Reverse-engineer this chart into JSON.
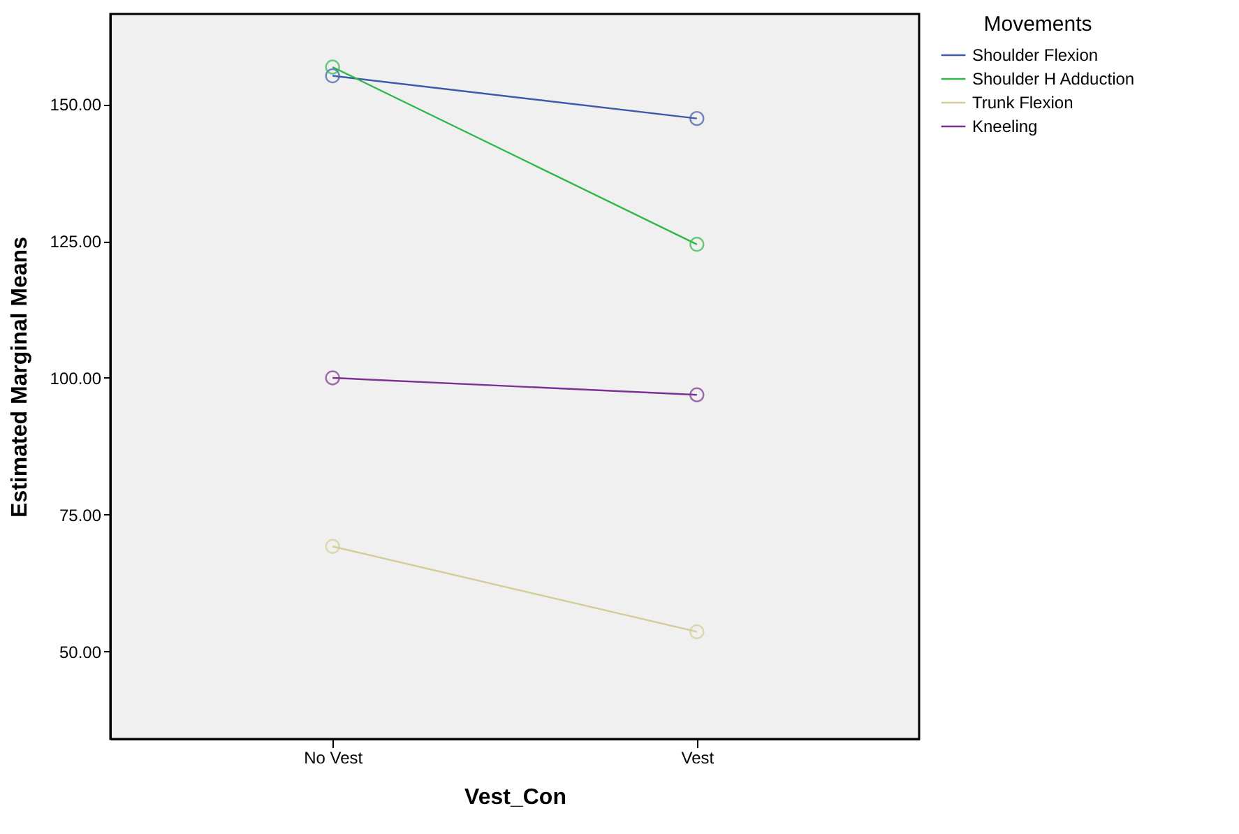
{
  "chart_data": {
    "type": "line",
    "xlabel": "Vest_Con",
    "ylabel": "Estimated Marginal Means",
    "legend_title": "Movements",
    "legend": "top right",
    "marker": "circle",
    "line_style": "solid",
    "grid": false,
    "categories": [
      "No Vest",
      "Vest"
    ],
    "series": [
      {
        "name": "Shoulder Flexion",
        "color": "#3e58ac",
        "values": [
          155.2,
          147.4
        ]
      },
      {
        "name": "Shoulder H Adduction",
        "color": "#2eb848",
        "values": [
          156.8,
          124.4
        ]
      },
      {
        "name": "Trunk Flexion",
        "color": "#d3ce97",
        "values": [
          69.2,
          53.6
        ]
      },
      {
        "name": "Kneeling",
        "color": "#7b3294",
        "values": [
          100,
          96.9
        ]
      }
    ],
    "ylim": [
      34,
      166.5
    ],
    "yticks": [
      {
        "value": 50,
        "label": "50.00"
      },
      {
        "value": 75,
        "label": "75.00"
      },
      {
        "value": 100,
        "label": "100.00"
      },
      {
        "value": 125,
        "label": "125.00"
      },
      {
        "value": 150,
        "label": "150.00"
      }
    ]
  }
}
